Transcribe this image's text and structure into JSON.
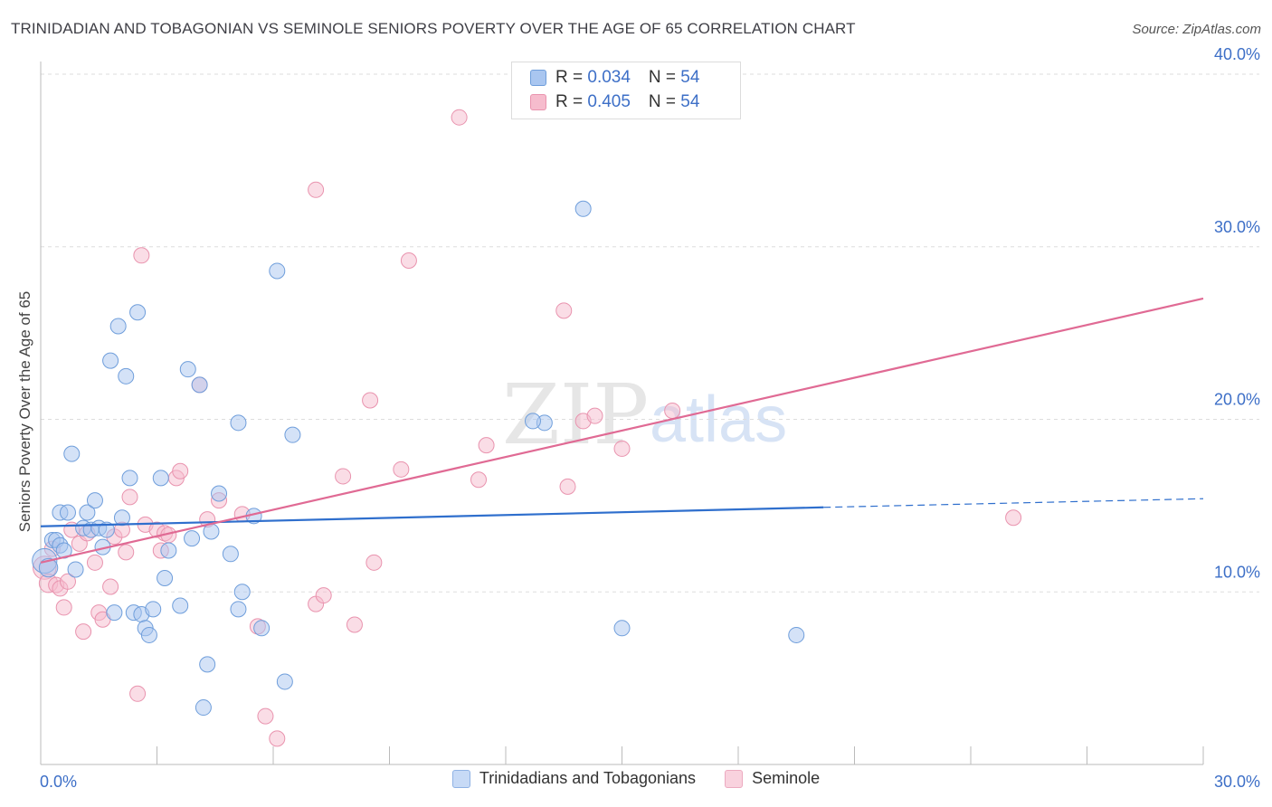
{
  "header": {
    "title": "TRINIDADIAN AND TOBAGONIAN VS SEMINOLE SENIORS POVERTY OVER THE AGE OF 65 CORRELATION CHART",
    "source": "Source: ZipAtlas.com"
  },
  "legend": {
    "r_label": "R = ",
    "n_label": "N = ",
    "rows": [
      {
        "r": "0.034",
        "n": "54"
      },
      {
        "r": "0.405",
        "n": "54"
      }
    ]
  },
  "watermark": {
    "zip": "ZIP",
    "atlas": "atlas"
  },
  "colors": {
    "blue_fill": "#a9c6f0",
    "blue_stroke": "#6f9edb",
    "blue_line": "#2f6fcd",
    "pink_fill": "#f6bccd",
    "pink_stroke": "#e993ae",
    "pink_line": "#e06a94",
    "grid": "#dddddd",
    "tick_label": "#3d6fc7"
  },
  "chart_data": {
    "type": "scatter",
    "title": "TRINIDADIAN AND TOBAGONIAN VS SEMINOLE SENIORS POVERTY OVER THE AGE OF 65 CORRELATION CHART",
    "xlabel": "",
    "ylabel": "Seniors Poverty Over the Age of 65",
    "xlim": [
      0,
      30
    ],
    "ylim": [
      0,
      40
    ],
    "x_tick_labels": {
      "left": "0.0%",
      "right": "30.0%"
    },
    "y_ticks": [
      {
        "value": 10,
        "label": "10.0%"
      },
      {
        "value": 20,
        "label": "20.0%"
      },
      {
        "value": 30,
        "label": "30.0%"
      },
      {
        "value": 40,
        "label": "40.0%"
      }
    ],
    "x_minor_ticks": [
      0,
      3,
      6,
      9,
      12,
      15,
      18,
      21,
      24,
      27,
      30
    ],
    "series": [
      {
        "name": "Trinidadians and Tobagonians",
        "color": "blue",
        "r": 0.034,
        "n": 54,
        "trend": {
          "x0": 0,
          "y0": 13.8,
          "x1": 20.2,
          "y1": 14.9,
          "dash_x1": 30,
          "dash_y1": 15.4
        },
        "points": [
          [
            0.1,
            11.8,
            1.6
          ],
          [
            0.2,
            11.4,
            1.2
          ],
          [
            0.3,
            13.0,
            1
          ],
          [
            0.4,
            13.0,
            1
          ],
          [
            0.5,
            14.6,
            1
          ],
          [
            0.5,
            12.7,
            1
          ],
          [
            0.6,
            12.4,
            1
          ],
          [
            0.7,
            14.6,
            1
          ],
          [
            0.8,
            18.0,
            1
          ],
          [
            0.9,
            11.3,
            1
          ],
          [
            1.1,
            13.7,
            1
          ],
          [
            1.2,
            14.6,
            1
          ],
          [
            1.3,
            13.6,
            1
          ],
          [
            1.4,
            15.3,
            1
          ],
          [
            1.5,
            13.7,
            1
          ],
          [
            1.6,
            12.6,
            1
          ],
          [
            1.7,
            13.6,
            1
          ],
          [
            1.8,
            23.4,
            1
          ],
          [
            1.9,
            8.8,
            1
          ],
          [
            2.0,
            25.4,
            1
          ],
          [
            2.1,
            14.3,
            1
          ],
          [
            2.2,
            22.5,
            1
          ],
          [
            2.3,
            16.6,
            1
          ],
          [
            2.4,
            8.8,
            1
          ],
          [
            2.5,
            26.2,
            1
          ],
          [
            2.6,
            8.7,
            1
          ],
          [
            2.7,
            7.9,
            1
          ],
          [
            2.8,
            7.5,
            1
          ],
          [
            2.9,
            9.0,
            1
          ],
          [
            3.1,
            16.6,
            1
          ],
          [
            3.2,
            10.8,
            1
          ],
          [
            3.3,
            12.4,
            1
          ],
          [
            3.6,
            9.2,
            1
          ],
          [
            3.8,
            22.9,
            1
          ],
          [
            3.9,
            13.1,
            1
          ],
          [
            4.1,
            22.0,
            1
          ],
          [
            4.3,
            5.8,
            1
          ],
          [
            4.4,
            13.5,
            1
          ],
          [
            4.6,
            15.7,
            1
          ],
          [
            4.2,
            3.3,
            1
          ],
          [
            4.9,
            12.2,
            1
          ],
          [
            5.1,
            19.8,
            1
          ],
          [
            5.1,
            9.0,
            1
          ],
          [
            5.2,
            10.0,
            1
          ],
          [
            5.5,
            14.4,
            1
          ],
          [
            5.7,
            7.9,
            1
          ],
          [
            6.1,
            28.6,
            1
          ],
          [
            6.3,
            4.8,
            1
          ],
          [
            6.5,
            19.1,
            1
          ],
          [
            13.0,
            19.8,
            1
          ],
          [
            12.7,
            19.9,
            1
          ],
          [
            14.0,
            32.2,
            1
          ],
          [
            15.0,
            7.9,
            1
          ],
          [
            19.5,
            7.5,
            1
          ]
        ]
      },
      {
        "name": "Seminole",
        "color": "pink",
        "r": 0.405,
        "n": 54,
        "trend": {
          "x0": 0,
          "y0": 11.7,
          "x1": 30,
          "y1": 27.0
        },
        "points": [
          [
            0.1,
            11.4,
            1.5
          ],
          [
            0.2,
            10.5,
            1.2
          ],
          [
            0.3,
            12.5,
            1
          ],
          [
            0.4,
            10.4,
            1
          ],
          [
            0.5,
            10.2,
            1
          ],
          [
            0.6,
            9.1,
            1
          ],
          [
            0.7,
            10.6,
            1
          ],
          [
            0.8,
            13.6,
            1
          ],
          [
            1.0,
            12.8,
            1
          ],
          [
            1.1,
            7.7,
            1
          ],
          [
            1.2,
            13.4,
            1
          ],
          [
            1.4,
            11.7,
            1
          ],
          [
            1.5,
            8.8,
            1
          ],
          [
            1.6,
            8.4,
            1
          ],
          [
            1.8,
            10.3,
            1
          ],
          [
            1.9,
            13.2,
            1
          ],
          [
            2.1,
            13.6,
            1
          ],
          [
            2.2,
            12.3,
            1
          ],
          [
            2.3,
            15.5,
            1
          ],
          [
            2.5,
            4.1,
            1
          ],
          [
            2.6,
            29.5,
            1
          ],
          [
            2.7,
            13.9,
            1
          ],
          [
            3.0,
            13.6,
            1
          ],
          [
            3.1,
            12.4,
            1
          ],
          [
            3.2,
            13.4,
            1
          ],
          [
            3.3,
            13.3,
            1
          ],
          [
            3.5,
            16.6,
            1
          ],
          [
            3.6,
            17.0,
            1
          ],
          [
            4.1,
            22.0,
            1
          ],
          [
            4.3,
            14.2,
            1
          ],
          [
            4.6,
            15.3,
            1
          ],
          [
            5.2,
            14.5,
            1
          ],
          [
            5.6,
            8.0,
            1
          ],
          [
            5.8,
            2.8,
            1
          ],
          [
            6.1,
            1.5,
            1
          ],
          [
            7.1,
            9.3,
            1
          ],
          [
            7.3,
            9.8,
            1
          ],
          [
            7.1,
            33.3,
            1
          ],
          [
            7.8,
            16.7,
            1
          ],
          [
            8.1,
            8.1,
            1
          ],
          [
            8.5,
            21.1,
            1
          ],
          [
            8.6,
            11.7,
            1
          ],
          [
            9.3,
            17.1,
            1
          ],
          [
            9.5,
            29.2,
            1
          ],
          [
            10.8,
            37.5,
            1
          ],
          [
            11.3,
            16.5,
            1
          ],
          [
            11.5,
            18.5,
            1
          ],
          [
            13.5,
            26.3,
            1
          ],
          [
            13.6,
            16.1,
            1
          ],
          [
            14.0,
            19.9,
            1
          ],
          [
            14.3,
            20.2,
            1
          ],
          [
            15.0,
            18.3,
            1
          ],
          [
            16.3,
            20.5,
            1
          ],
          [
            25.1,
            14.3,
            1
          ]
        ]
      }
    ]
  }
}
